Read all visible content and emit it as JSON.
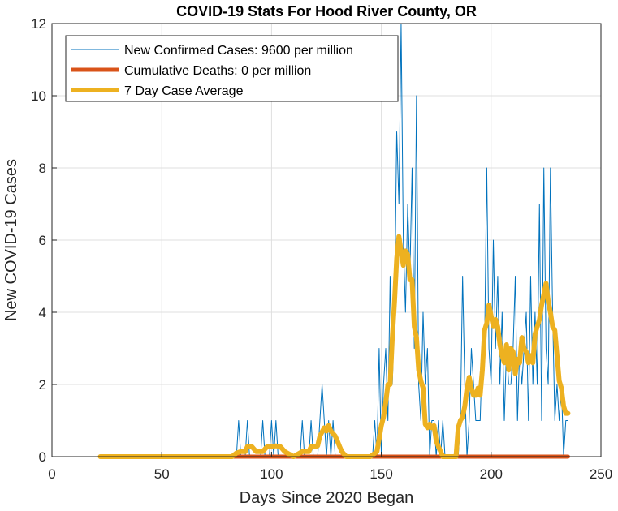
{
  "chart_data": {
    "type": "line",
    "title": "COVID-19 Stats For Hood River County, OR",
    "xlabel": "Days Since 2020 Began",
    "ylabel": "New COVID-19 Cases",
    "xlim": [
      0,
      250
    ],
    "ylim": [
      0,
      12
    ],
    "xticks": [
      0,
      50,
      100,
      150,
      200,
      250
    ],
    "yticks": [
      0,
      2,
      4,
      6,
      8,
      10,
      12
    ],
    "grid": true,
    "legend_position": "top-left",
    "series": [
      {
        "name": "New Confirmed Cases: 9600 per million",
        "color": "#0072BD",
        "x": [
          22,
          84,
          85,
          86,
          88,
          89,
          90,
          91,
          95,
          96,
          97,
          99,
          100,
          101,
          102,
          103,
          104,
          113,
          114,
          115,
          117,
          118,
          119,
          121,
          122,
          123,
          124,
          125,
          126,
          127,
          128,
          129,
          130,
          131,
          132,
          146,
          147,
          148,
          149,
          150,
          151,
          152,
          153,
          154,
          155,
          156,
          157,
          158,
          159,
          160,
          161,
          162,
          163,
          164,
          165,
          166,
          167,
          168,
          169,
          170,
          171,
          172,
          173,
          174,
          175,
          176,
          177,
          178,
          179,
          180,
          181,
          185,
          186,
          187,
          188,
          189,
          190,
          191,
          192,
          193,
          194,
          195,
          196,
          197,
          198,
          199,
          200,
          201,
          202,
          203,
          204,
          205,
          206,
          207,
          208,
          209,
          210,
          211,
          212,
          213,
          214,
          215,
          216,
          217,
          218,
          219,
          220,
          221,
          222,
          223,
          224,
          225,
          226,
          227,
          228,
          229,
          230,
          231,
          232,
          233,
          234,
          235
        ],
        "y": [
          0,
          0,
          1,
          0,
          0,
          1,
          0,
          0,
          0,
          1,
          0,
          0,
          1,
          0,
          1,
          0,
          0,
          0,
          1,
          0,
          0,
          1,
          0,
          0,
          1,
          2,
          1,
          0,
          1,
          0,
          1,
          0,
          0,
          0,
          0,
          0,
          1,
          0,
          3,
          0,
          2,
          3,
          1,
          5,
          2,
          4,
          9,
          7,
          12,
          6,
          4,
          7,
          5,
          8,
          3,
          10,
          2,
          1,
          4,
          2,
          3,
          0,
          1,
          1,
          0,
          1,
          0,
          1,
          0,
          0,
          0,
          0,
          1,
          5,
          2,
          0,
          1,
          3,
          2,
          1,
          1,
          1,
          3,
          3,
          8,
          3,
          2,
          6,
          3,
          5,
          2,
          4,
          1,
          3,
          2,
          2,
          3,
          5,
          1,
          3,
          2,
          3,
          4,
          1,
          5,
          2,
          4,
          2,
          7,
          1,
          8,
          3,
          2,
          8,
          4,
          1,
          2,
          1,
          2,
          0,
          1,
          1
        ]
      },
      {
        "name": "Cumulative Deaths: 0 per million",
        "color": "#D95319",
        "x": [
          22,
          235
        ],
        "y": [
          0,
          0
        ]
      },
      {
        "name": "7 Day Case Average",
        "color": "#EDB120",
        "x": [
          22,
          82,
          84,
          86,
          88,
          89,
          91,
          93,
          95,
          96,
          98,
          100,
          102,
          104,
          106,
          110,
          114,
          117,
          118,
          120,
          121,
          122,
          124,
          125,
          126,
          127,
          129,
          130,
          131,
          132,
          134,
          136,
          138,
          145,
          148,
          149,
          150,
          151,
          152,
          153,
          154,
          155,
          156,
          157,
          158,
          159,
          160,
          161,
          162,
          163,
          164,
          165,
          166,
          167,
          168,
          169,
          170,
          171,
          172,
          173,
          174,
          175,
          176,
          177,
          178,
          179,
          180,
          181,
          184,
          185,
          186,
          187,
          188,
          189,
          190,
          191,
          192,
          193,
          194,
          195,
          196,
          197,
          198,
          199,
          200,
          201,
          202,
          203,
          204,
          205,
          206,
          207,
          208,
          209,
          210,
          211,
          212,
          213,
          214,
          215,
          216,
          217,
          218,
          219,
          220,
          221,
          222,
          223,
          224,
          225,
          226,
          227,
          228,
          229,
          230,
          231,
          232,
          233,
          234,
          235
        ],
        "y": [
          0,
          0,
          0.1,
          0.14,
          0.14,
          0.28,
          0.28,
          0.14,
          0.14,
          0.14,
          0.28,
          0.28,
          0.3,
          0.28,
          0.14,
          0,
          0.14,
          0.14,
          0.28,
          0.28,
          0.3,
          0.57,
          0.8,
          0.71,
          0.86,
          0.71,
          0.57,
          0.43,
          0.28,
          0.14,
          0,
          0,
          0,
          0,
          0.14,
          0.5,
          0.86,
          1.1,
          1.5,
          2,
          2,
          3.3,
          4.3,
          5.5,
          6.1,
          5.7,
          5.3,
          5.7,
          5.6,
          4.9,
          4.9,
          3.6,
          3.3,
          2.4,
          2.1,
          1.9,
          0.9,
          0.8,
          0.9,
          0.8,
          0.86,
          0.43,
          0.28,
          0.14,
          0,
          0,
          0,
          0,
          0,
          0.8,
          1,
          1.1,
          1.4,
          1.9,
          2.2,
          1.9,
          1.7,
          1.7,
          1.9,
          1.7,
          2.4,
          3.5,
          3.7,
          4.2,
          3.9,
          3.6,
          3.8,
          3.6,
          3.1,
          2.8,
          2.6,
          3.1,
          2.4,
          3,
          2.9,
          2.3,
          2.7,
          2.6,
          3.3,
          3,
          2.9,
          2.6,
          2.8,
          2.6,
          3.4,
          3.6,
          3.8,
          4.2,
          4.5,
          4.8,
          4.3,
          4,
          3.6,
          3.5,
          2.8,
          2.1,
          1.9,
          1.4,
          1.2,
          1.2
        ]
      }
    ]
  }
}
